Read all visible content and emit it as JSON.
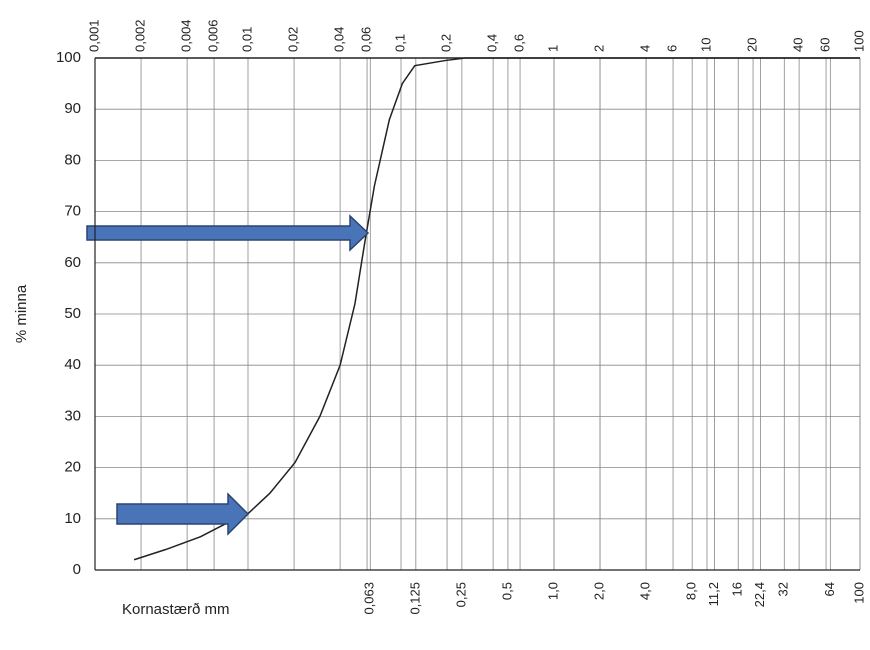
{
  "chart_data": {
    "type": "line",
    "x_label": "Kornastærð mm",
    "y_label": "% minna",
    "x_log": true,
    "grid": true,
    "xlim": [
      0.001,
      100
    ],
    "ylim": [
      0,
      100
    ],
    "yticks": [
      0,
      10,
      20,
      30,
      40,
      50,
      60,
      70,
      80,
      90,
      100
    ],
    "xticks": [
      {
        "value": 0.001,
        "label": "0,001"
      },
      {
        "value": 0.002,
        "label": "0,002"
      },
      {
        "value": 0.004,
        "label": "0,004"
      },
      {
        "value": 0.006,
        "label": "0,006"
      },
      {
        "value": 0.01,
        "label": "0,01"
      },
      {
        "value": 0.02,
        "label": "0,02"
      },
      {
        "value": 0.04,
        "label": "0,04"
      },
      {
        "value": 0.06,
        "label": "0,06"
      },
      {
        "value": 0.1,
        "label": "0,1"
      },
      {
        "value": 0.2,
        "label": "0,2"
      },
      {
        "value": 0.4,
        "label": "0,4"
      },
      {
        "value": 0.6,
        "label": "0,6"
      },
      1,
      2,
      4,
      6,
      10,
      20,
      40,
      60,
      100
    ],
    "x2ticks": [
      {
        "value": 0.063,
        "label": "0,063"
      },
      {
        "value": 0.125,
        "label": "0,125"
      },
      {
        "value": 0.25,
        "label": "0,25"
      },
      {
        "value": 0.5,
        "label": "0,5"
      },
      {
        "value": 1,
        "label": "1,0"
      },
      {
        "value": 2,
        "label": "2,0"
      },
      {
        "value": 4,
        "label": "4,0"
      },
      {
        "value": 8,
        "label": "8,0"
      },
      {
        "value": 11.2,
        "label": "11,2"
      },
      16,
      {
        "value": 22.4,
        "label": "22,4"
      },
      32,
      64,
      100
    ],
    "color": "#222222",
    "x": [
      0.0018,
      0.0029,
      0.0049,
      0.0071,
      0.01,
      0.0139,
      0.0203,
      0.0295,
      0.04,
      0.05,
      0.058,
      0.067,
      0.084,
      0.102,
      0.123,
      0.194,
      0.262,
      100
    ],
    "values": [
      2,
      4,
      6.5,
      9,
      11,
      15,
      21,
      30,
      40,
      52,
      64,
      75,
      88,
      95,
      98.5,
      99.5,
      100,
      100
    ]
  }
}
